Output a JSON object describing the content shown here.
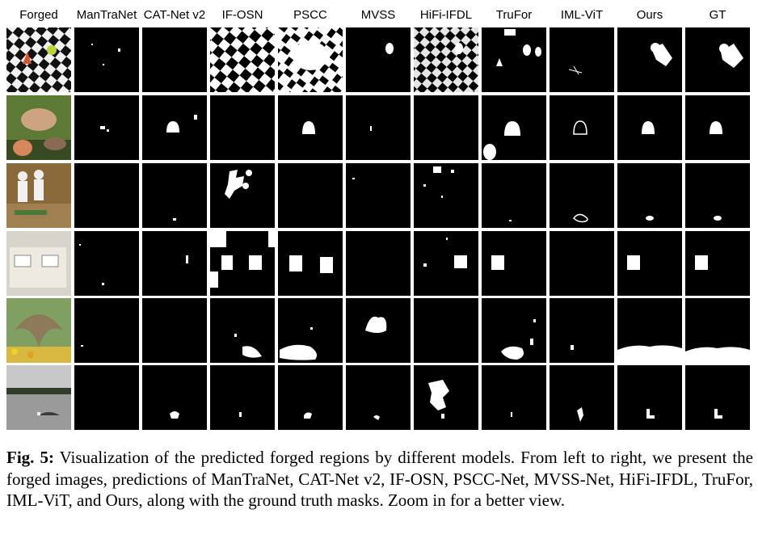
{
  "figure": {
    "columns": [
      "Forged",
      "ManTraNet",
      "CAT-Net v2",
      "IF-OSN",
      "PSCC",
      "MVSS",
      "HiFi-IFDL",
      "TruFor",
      "IML-ViT",
      "Ours",
      "GT"
    ],
    "rows": [
      "row-1",
      "row-2",
      "row-3",
      "row-4",
      "row-5",
      "row-6"
    ]
  },
  "caption": {
    "label": "Fig. 5:",
    "text": " Visualization of the predicted forged regions by different models. From left to right, we present the forged images, predictions of ManTraNet, CAT-Net v2, IF-OSN, PSCC-Net, MVSS-Net, HiFi-IFDL, TruFor, IML-ViT, and Ours, along with the ground truth masks. Zoom in for a better view."
  }
}
